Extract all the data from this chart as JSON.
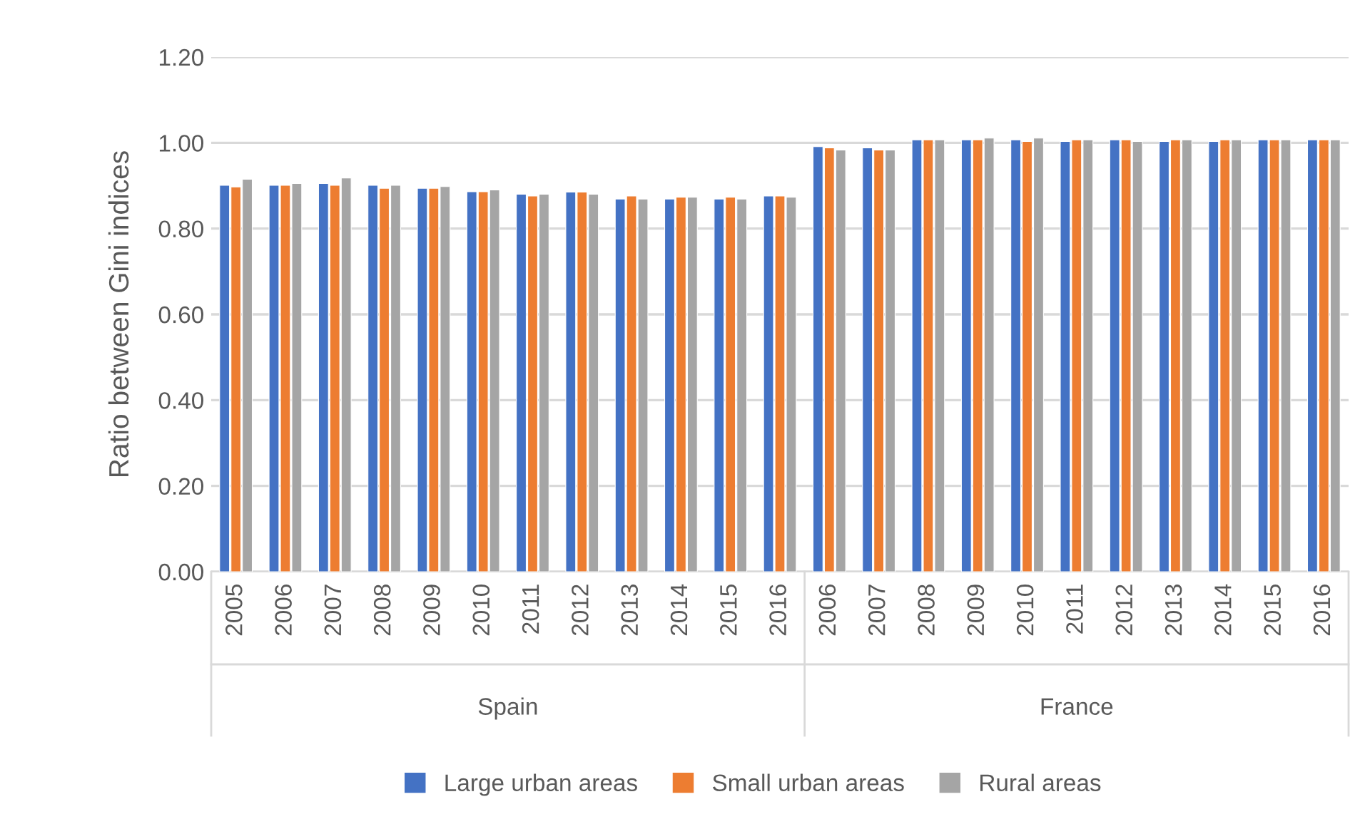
{
  "chart_data": {
    "type": "bar",
    "ylabel": "Ratio between Gini indices",
    "categories": [
      "2005",
      "2006",
      "2007",
      "2008",
      "2009",
      "2010",
      "2011",
      "2012",
      "2013",
      "2014",
      "2015",
      "2016",
      "2006",
      "2007",
      "2008",
      "2009",
      "2010",
      "2011",
      "2012",
      "2013",
      "2014",
      "2015",
      "2016"
    ],
    "series": [
      {
        "name": "Large urban areas",
        "color": "#4472c4",
        "values": [
          0.901,
          0.901,
          0.905,
          0.901,
          0.894,
          0.886,
          0.88,
          0.885,
          0.869,
          0.869,
          0.869,
          0.876,
          0.991,
          0.988,
          1.007,
          1.007,
          1.007,
          1.003,
          1.007,
          1.003,
          1.003,
          1.007,
          1.007
        ]
      },
      {
        "name": "Small urban areas",
        "color": "#ed7d31",
        "values": [
          0.897,
          0.901,
          0.901,
          0.894,
          0.894,
          0.886,
          0.876,
          0.885,
          0.876,
          0.873,
          0.873,
          0.876,
          0.988,
          0.983,
          1.007,
          1.007,
          1.003,
          1.007,
          1.007,
          1.007,
          1.007,
          1.007,
          1.007
        ]
      },
      {
        "name": "Rural areas",
        "color": "#a5a5a5",
        "values": [
          0.915,
          0.905,
          0.918,
          0.901,
          0.898,
          0.89,
          0.88,
          0.88,
          0.869,
          0.873,
          0.869,
          0.873,
          0.983,
          0.983,
          1.007,
          1.011,
          1.011,
          1.007,
          1.003,
          1.007,
          1.007,
          1.007,
          1.007
        ]
      }
    ],
    "annotations": [
      "Spain",
      "France"
    ],
    "ylim": [
      0,
      1.2
    ],
    "yticks": [
      {
        "value": 0,
        "label": "0.00"
      },
      {
        "value": 0.2,
        "label": "0.20"
      },
      {
        "value": 0.4,
        "label": "0.40"
      },
      {
        "value": 0.6,
        "label": "0.60"
      },
      {
        "value": 0.8,
        "label": "0.80"
      },
      {
        "value": 1.0,
        "label": "1.00"
      },
      {
        "value": 1.2,
        "label": "1.20"
      }
    ],
    "grid": "y",
    "legend": "bottom"
  }
}
